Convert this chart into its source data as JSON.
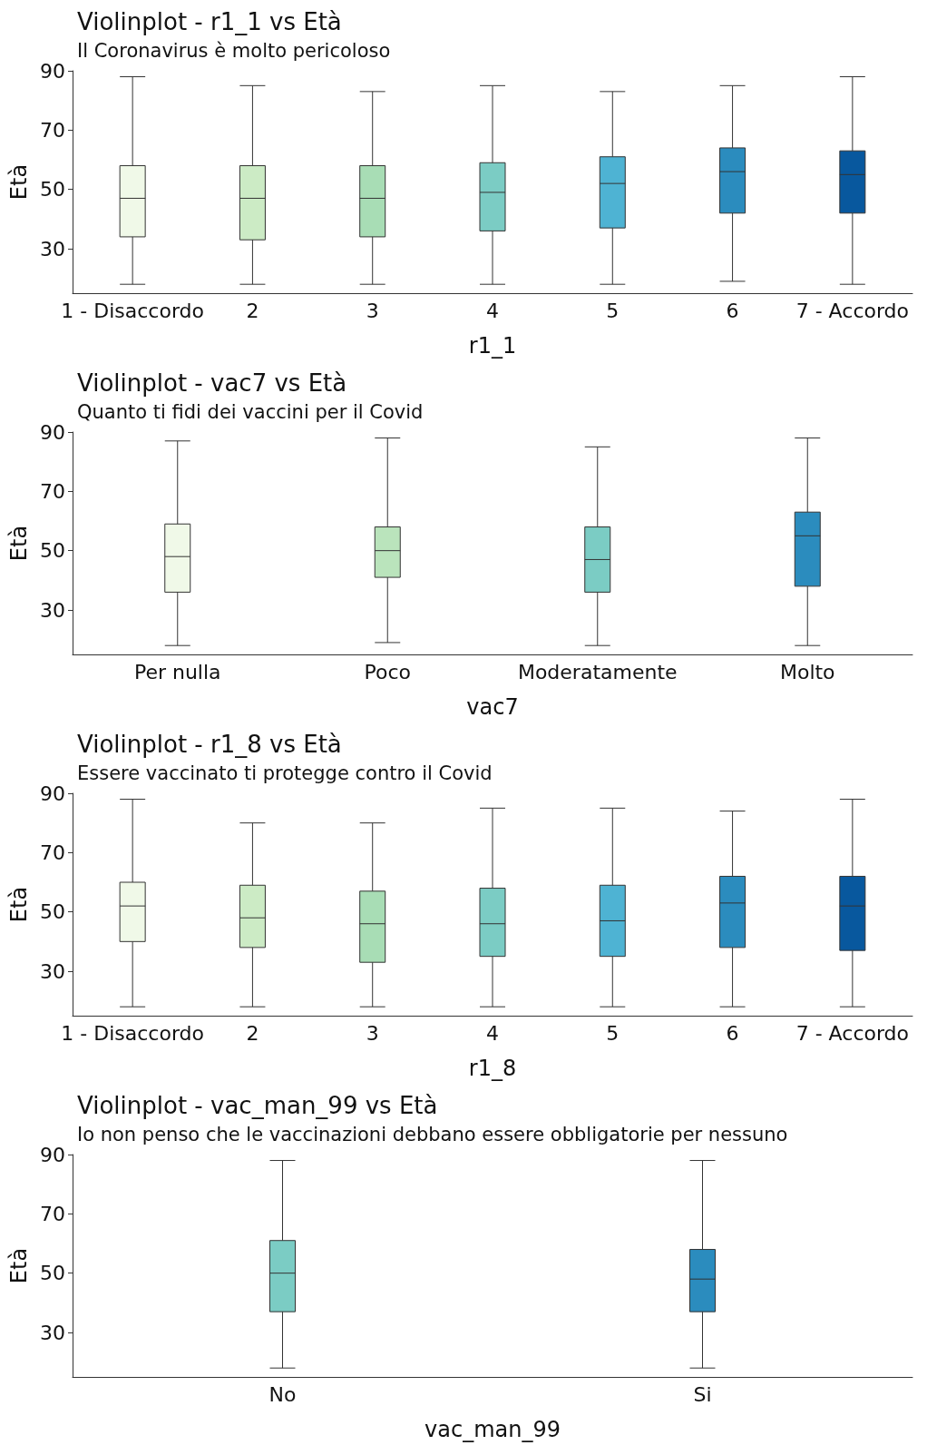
{
  "chart_data": [
    {
      "type": "box",
      "title": "Violinplot - r1_1 vs Età",
      "subtitle": "Il Coronavirus è molto pericoloso",
      "xlabel": "r1_1",
      "ylabel": "Età",
      "categories": [
        "1 - Disaccordo",
        "2",
        "3",
        "4",
        "5",
        "6",
        "7 - Accordo"
      ],
      "colors": [
        "#f0f9e8",
        "#ccebc5",
        "#a8ddb5",
        "#7bccc4",
        "#4eb3d3",
        "#2b8cbe",
        "#08589e"
      ],
      "ylim": [
        15,
        90
      ],
      "yticks": [
        30,
        50,
        70,
        90
      ],
      "grid": false,
      "boxes": [
        {
          "low": 18,
          "q1": 34,
          "median": 47,
          "q3": 58,
          "high": 88
        },
        {
          "low": 18,
          "q1": 33,
          "median": 47,
          "q3": 58,
          "high": 85
        },
        {
          "low": 18,
          "q1": 34,
          "median": 47,
          "q3": 58,
          "high": 83
        },
        {
          "low": 18,
          "q1": 36,
          "median": 49,
          "q3": 59,
          "high": 85
        },
        {
          "low": 18,
          "q1": 37,
          "median": 52,
          "q3": 61,
          "high": 83
        },
        {
          "low": 19,
          "q1": 42,
          "median": 56,
          "q3": 64,
          "high": 85
        },
        {
          "low": 18,
          "q1": 42,
          "median": 55,
          "q3": 63,
          "high": 88
        }
      ]
    },
    {
      "type": "box",
      "title": "Violinplot - vac7 vs Età",
      "subtitle": "Quanto ti fidi dei vaccini per il Covid",
      "xlabel": "vac7",
      "ylabel": "Età",
      "categories": [
        "Per nulla",
        "Poco",
        "Moderatamente",
        "Molto"
      ],
      "colors": [
        "#f0f9e8",
        "#bae4bc",
        "#7bccc4",
        "#2b8cbe"
      ],
      "ylim": [
        15,
        90
      ],
      "yticks": [
        30,
        50,
        70,
        90
      ],
      "grid": false,
      "boxes": [
        {
          "low": 18,
          "q1": 36,
          "median": 48,
          "q3": 59,
          "high": 87
        },
        {
          "low": 19,
          "q1": 41,
          "median": 50,
          "q3": 58,
          "high": 88
        },
        {
          "low": 18,
          "q1": 36,
          "median": 47,
          "q3": 58,
          "high": 85
        },
        {
          "low": 18,
          "q1": 38,
          "median": 55,
          "q3": 63,
          "high": 88
        }
      ]
    },
    {
      "type": "box",
      "title": "Violinplot - r1_8 vs Età",
      "subtitle": "Essere vaccinato ti protegge contro il Covid",
      "xlabel": "r1_8",
      "ylabel": "Età",
      "categories": [
        "1 - Disaccordo",
        "2",
        "3",
        "4",
        "5",
        "6",
        "7 - Accordo"
      ],
      "colors": [
        "#f0f9e8",
        "#ccebc5",
        "#a8ddb5",
        "#7bccc4",
        "#4eb3d3",
        "#2b8cbe",
        "#08589e"
      ],
      "ylim": [
        15,
        90
      ],
      "yticks": [
        30,
        50,
        70,
        90
      ],
      "grid": false,
      "boxes": [
        {
          "low": 18,
          "q1": 40,
          "median": 52,
          "q3": 60,
          "high": 88
        },
        {
          "low": 18,
          "q1": 38,
          "median": 48,
          "q3": 59,
          "high": 80
        },
        {
          "low": 18,
          "q1": 33,
          "median": 46,
          "q3": 57,
          "high": 80
        },
        {
          "low": 18,
          "q1": 35,
          "median": 46,
          "q3": 58,
          "high": 85
        },
        {
          "low": 18,
          "q1": 35,
          "median": 47,
          "q3": 59,
          "high": 85
        },
        {
          "low": 18,
          "q1": 38,
          "median": 53,
          "q3": 62,
          "high": 84
        },
        {
          "low": 18,
          "q1": 37,
          "median": 52,
          "q3": 62,
          "high": 88
        }
      ]
    },
    {
      "type": "box",
      "title": "Violinplot - vac_man_99 vs Età",
      "subtitle": "Io non penso che le vaccinazioni debbano essere obbligatorie per nessuno",
      "xlabel": "vac_man_99",
      "ylabel": "Età",
      "categories": [
        "No",
        "Si"
      ],
      "colors": [
        "#7bccc4",
        "#2b8cbe"
      ],
      "ylim": [
        15,
        90
      ],
      "yticks": [
        30,
        50,
        70,
        90
      ],
      "grid": false,
      "boxes": [
        {
          "low": 18,
          "q1": 37,
          "median": 50,
          "q3": 61,
          "high": 88
        },
        {
          "low": 18,
          "q1": 37,
          "median": 48,
          "q3": 58,
          "high": 88
        }
      ]
    }
  ]
}
